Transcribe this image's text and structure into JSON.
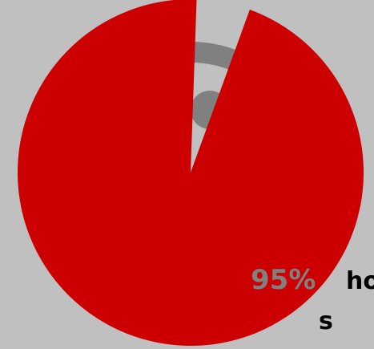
{
  "chart_data": {
    "type": "pie",
    "slices": [
      {
        "value": 95,
        "color": "#cc0000"
      },
      {
        "value": 5,
        "color": "#c0c0c0"
      }
    ],
    "data_label": "95%",
    "caption_lines": [
      "ho",
      "s"
    ],
    "label_color": "#808080",
    "caption_color": "#000000",
    "background": "#c0c0c0",
    "inner_graphic_color": "#808080"
  }
}
